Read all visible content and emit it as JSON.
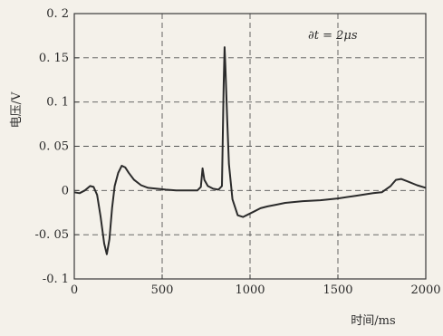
{
  "chart_data": {
    "type": "line",
    "ylabel": "电压/V",
    "xlabel": "时间/ms",
    "annotation": "∂t = 2μs",
    "xlim": [
      0,
      2000
    ],
    "ylim": [
      -0.1,
      0.2
    ],
    "xticks": [
      0,
      500,
      1000,
      1500,
      2000
    ],
    "xtick_labels": [
      "0",
      "500",
      "1000",
      "1500",
      "2000"
    ],
    "yticks": [
      -0.1,
      -0.05,
      0,
      0.05,
      0.1,
      0.15,
      0.2
    ],
    "ytick_labels": [
      "-0. 1",
      "-0. 05",
      "0",
      "0. 05",
      "0. 1",
      "0. 15",
      "0. 2"
    ],
    "grid": true,
    "line_color": "#2b2b2b",
    "series": [
      {
        "x": [
          0,
          30,
          60,
          90,
          110,
          130,
          150,
          170,
          185,
          200,
          215,
          230,
          250,
          270,
          290,
          310,
          340,
          380,
          420,
          470,
          520,
          580,
          640,
          700,
          720,
          730,
          740,
          760,
          790,
          820,
          840,
          850,
          855,
          860,
          870,
          880,
          900,
          930,
          960,
          990,
          1020,
          1060,
          1100,
          1150,
          1200,
          1300,
          1400,
          1500,
          1600,
          1700,
          1750,
          1800,
          1830,
          1860,
          1900,
          1950,
          2000
        ],
        "y": [
          -0.002,
          -0.003,
          0.0,
          0.005,
          0.004,
          -0.005,
          -0.03,
          -0.06,
          -0.072,
          -0.055,
          -0.02,
          0.005,
          0.02,
          0.028,
          0.026,
          0.02,
          0.012,
          0.006,
          0.003,
          0.002,
          0.001,
          0.0,
          0.0,
          0.0,
          0.004,
          0.025,
          0.012,
          0.005,
          0.002,
          0.001,
          0.005,
          0.12,
          0.162,
          0.14,
          0.08,
          0.03,
          -0.01,
          -0.028,
          -0.03,
          -0.027,
          -0.024,
          -0.02,
          -0.018,
          -0.016,
          -0.014,
          -0.012,
          -0.011,
          -0.009,
          -0.006,
          -0.003,
          -0.002,
          0.005,
          0.012,
          0.013,
          0.01,
          0.006,
          0.003
        ]
      }
    ]
  }
}
